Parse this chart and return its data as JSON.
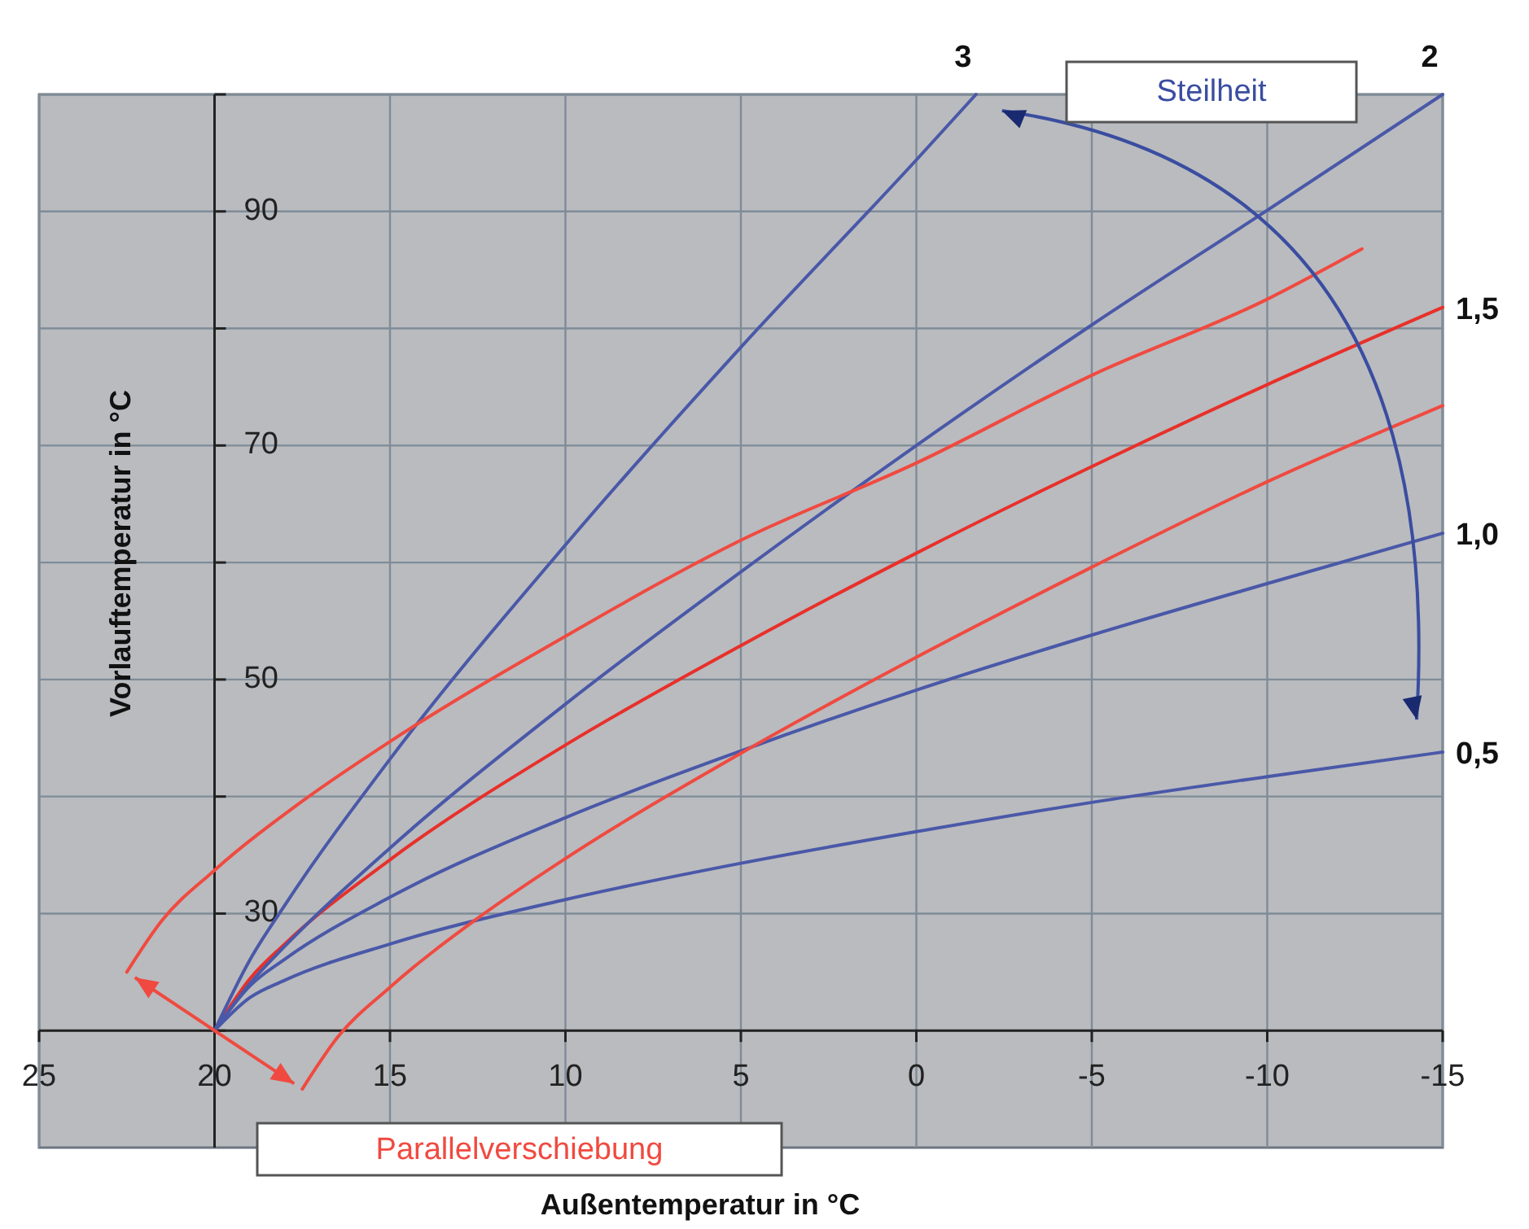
{
  "chart_data": {
    "type": "line",
    "xlabel": "Außentemperatur in °C",
    "ylabel": "Vorlauftemperatur in °C",
    "xlim": [
      25,
      -15
    ],
    "xticks": [
      25,
      20,
      15,
      10,
      5,
      0,
      -5,
      -10,
      -15
    ],
    "ylim": [
      10,
      100
    ],
    "yticks": [
      {
        "value": 20,
        "label": null
      },
      30,
      {
        "value": 40,
        "label": null
      },
      50,
      {
        "value": 60,
        "label": null
      },
      70,
      {
        "value": 80,
        "label": null
      },
      90,
      {
        "value": 100,
        "label": null
      }
    ],
    "grid": true,
    "legend": false,
    "marker": "none",
    "line_style": "solid",
    "annotations": [
      "Steilheit",
      "Parallelverschiebung"
    ],
    "series": [
      {
        "name": "0,5",
        "color": "#4a58a8",
        "x": [
          20,
          19,
          18,
          15,
          10,
          5,
          0,
          -5,
          -10,
          -15
        ],
        "values": [
          20,
          22.8,
          24.3,
          27.4,
          31.2,
          34.3,
          37,
          39.5,
          41.7,
          43.8
        ]
      },
      {
        "name": "1,0",
        "color": "#4a58a8",
        "x": [
          20,
          19,
          18,
          15,
          10,
          5,
          0,
          -5,
          -10,
          -15
        ],
        "values": [
          20,
          23.8,
          26.1,
          31.4,
          38.2,
          43.9,
          49.1,
          53.8,
          58.2,
          62.5
        ]
      },
      {
        "name": "1,5",
        "color": "#e8302a",
        "x": [
          20,
          19,
          18,
          15,
          10,
          5,
          0,
          -5,
          -10,
          -15
        ],
        "values": [
          20,
          24.4,
          27.4,
          34.6,
          44.4,
          52.9,
          60.8,
          68.2,
          75.2,
          81.8
        ]
      },
      {
        "name": "2",
        "color": "#4a58a8",
        "x": [
          20,
          19,
          18,
          15,
          10,
          5,
          0,
          -5,
          -10,
          -15
        ],
        "values": [
          20,
          24,
          27.2,
          35.6,
          47.9,
          59.2,
          70,
          80.3,
          90.1,
          100
        ]
      },
      {
        "name": "3",
        "color": "#4a58a8",
        "x": [
          20,
          19,
          18,
          15,
          10,
          5,
          0,
          -1.7
        ],
        "values": [
          20,
          26,
          30.7,
          43.2,
          61.5,
          78.4,
          94.4,
          100
        ]
      },
      {
        "color": "#f04a40",
        "x": [
          22.5,
          21.5,
          20,
          17.5,
          15,
          10,
          5,
          0,
          -5,
          -10,
          -12.7
        ],
        "values": [
          25,
          29.4,
          33.7,
          39.6,
          44.7,
          53.7,
          61.9,
          68.5,
          76,
          82.5,
          86.8
        ]
      },
      {
        "color": "#f04a40",
        "x": [
          17.5,
          16.5,
          15,
          12.5,
          10,
          5,
          0,
          -5,
          -10,
          -15
        ],
        "values": [
          15,
          19.4,
          23.7,
          29.6,
          34.7,
          43.7,
          51.9,
          59.6,
          66.9,
          73.4
        ]
      }
    ]
  }
}
